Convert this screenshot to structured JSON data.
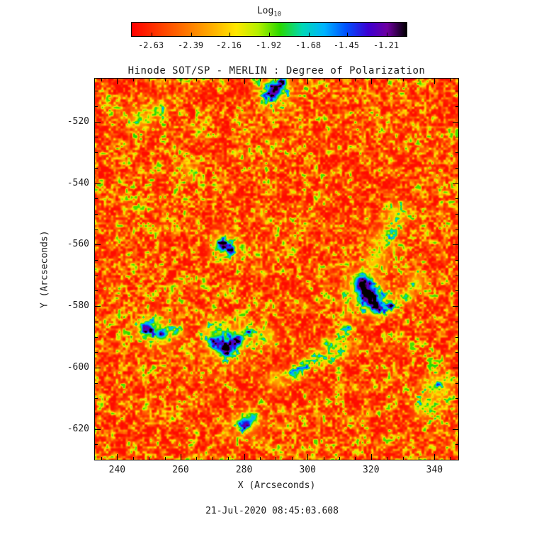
{
  "colorbar": {
    "title": "Log",
    "title_sub": "10",
    "tick_labels": [
      "-2.63",
      "-2.39",
      "-2.16",
      "-1.92",
      "-1.68",
      "-1.45",
      "-1.21"
    ]
  },
  "plot": {
    "title": "Hinode SOT/SP - MERLIN : Degree of Polarization",
    "xlabel": "X (Arcseconds)",
    "ylabel": "Y (Arcseconds)"
  },
  "caption": "21-Jul-2020 08:45:03.608",
  "chart_data": {
    "type": "heatmap",
    "title": "Hinode SOT/SP - MERLIN : Degree of Polarization",
    "xlabel": "X (Arcseconds)",
    "ylabel": "Y (Arcseconds)",
    "x_range": [
      233,
      347.5
    ],
    "y_range": [
      -630,
      -506
    ],
    "x_ticks": [
      240,
      260,
      280,
      300,
      320,
      340
    ],
    "y_ticks": [
      -520,
      -540,
      -560,
      -580,
      -600,
      -620
    ],
    "x_minor_step": 5,
    "y_minor_step": 5,
    "colorbar": {
      "scale_label": "Log10",
      "tick_values": [
        -2.63,
        -2.39,
        -2.16,
        -1.92,
        -1.68,
        -1.45,
        -1.21
      ],
      "value_range": [
        -2.75,
        -1.09
      ]
    },
    "value_description": "log10 degree of polarization: background granulation mostly -2.6 to -2.2 (red/orange) with speckles near -1.9 (green) and localized magnetic patches reaching -1.5 to -1.2 (blue/black)",
    "colormap_stops": [
      [
        0.0,
        "#ff0000"
      ],
      [
        0.1,
        "#ff3c00"
      ],
      [
        0.2,
        "#ff7700"
      ],
      [
        0.3,
        "#ffb300"
      ],
      [
        0.38,
        "#ffe800"
      ],
      [
        0.46,
        "#b4f000"
      ],
      [
        0.54,
        "#28d800"
      ],
      [
        0.62,
        "#00d8b4"
      ],
      [
        0.7,
        "#00b4ff"
      ],
      [
        0.78,
        "#0050ff"
      ],
      [
        0.86,
        "#3c00d2"
      ],
      [
        0.93,
        "#6e00a0"
      ],
      [
        1.0,
        "#000000"
      ]
    ],
    "noise_seed": 20200721,
    "features": [
      {
        "x": 289,
        "y": -510,
        "amp": 0.62,
        "sigma": 1.8
      },
      {
        "x": 292,
        "y": -507,
        "amp": 0.5,
        "sigma": 1.4
      },
      {
        "x": 290,
        "y": -510,
        "amp": 0.28,
        "sigma": 3.5
      },
      {
        "x": 273,
        "y": -560,
        "amp": 0.6,
        "sigma": 1.5
      },
      {
        "x": 276,
        "y": -561.5,
        "amp": 0.45,
        "sigma": 1.2
      },
      {
        "x": 274,
        "y": -560,
        "amp": 0.25,
        "sigma": 3.0
      },
      {
        "x": 317,
        "y": -572,
        "amp": 0.68,
        "sigma": 2.0
      },
      {
        "x": 319.5,
        "y": -577,
        "amp": 0.72,
        "sigma": 2.4
      },
      {
        "x": 322,
        "y": -581,
        "amp": 0.6,
        "sigma": 1.6
      },
      {
        "x": 326,
        "y": -580,
        "amp": 0.55,
        "sigma": 1.5
      },
      {
        "x": 331,
        "y": -577,
        "amp": 0.5,
        "sigma": 1.3
      },
      {
        "x": 318,
        "y": -575,
        "amp": 0.3,
        "sigma": 4.0
      },
      {
        "x": 312,
        "y": -587,
        "amp": 0.5,
        "sigma": 1.3
      },
      {
        "x": 306,
        "y": -592,
        "amp": 0.45,
        "sigma": 1.2
      },
      {
        "x": 249,
        "y": -587,
        "amp": 0.6,
        "sigma": 1.6
      },
      {
        "x": 254,
        "y": -589,
        "amp": 0.55,
        "sigma": 1.4
      },
      {
        "x": 259,
        "y": -588,
        "amp": 0.45,
        "sigma": 1.2
      },
      {
        "x": 252,
        "y": -588,
        "amp": 0.28,
        "sigma": 3.5
      },
      {
        "x": 270,
        "y": -592,
        "amp": 0.5,
        "sigma": 1.4
      },
      {
        "x": 274,
        "y": -594,
        "amp": 0.65,
        "sigma": 1.8
      },
      {
        "x": 278,
        "y": -591,
        "amp": 0.55,
        "sigma": 1.5
      },
      {
        "x": 281,
        "y": -588,
        "amp": 0.45,
        "sigma": 1.3
      },
      {
        "x": 275,
        "y": -592,
        "amp": 0.3,
        "sigma": 4.0
      },
      {
        "x": 296,
        "y": -602,
        "amp": 0.55,
        "sigma": 1.5
      },
      {
        "x": 299,
        "y": -599,
        "amp": 0.4,
        "sigma": 1.2
      },
      {
        "x": 280,
        "y": -618,
        "amp": 0.55,
        "sigma": 1.5
      },
      {
        "x": 283,
        "y": -616,
        "amp": 0.4,
        "sigma": 1.2
      },
      {
        "x": 281,
        "y": -618,
        "amp": 0.25,
        "sigma": 3.0
      },
      {
        "x": 328,
        "y": -550,
        "amp": 0.3,
        "sigma": 2.5
      },
      {
        "x": 324,
        "y": -558,
        "amp": 0.28,
        "sigma": 2.5
      },
      {
        "x": 321,
        "y": -565,
        "amp": 0.3,
        "sigma": 2.2
      },
      {
        "x": 334,
        "y": -572,
        "amp": 0.3,
        "sigma": 2.0
      },
      {
        "x": 310,
        "y": -594,
        "amp": 0.3,
        "sigma": 2.5
      },
      {
        "x": 303,
        "y": -597,
        "amp": 0.28,
        "sigma": 2.0
      },
      {
        "x": 341,
        "y": -606,
        "amp": 0.32,
        "sigma": 3.0
      },
      {
        "x": 337,
        "y": -613,
        "amp": 0.3,
        "sigma": 2.5
      },
      {
        "x": 247,
        "y": -519,
        "amp": 0.28,
        "sigma": 2.5
      },
      {
        "x": 253,
        "y": -516,
        "amp": 0.25,
        "sigma": 2.0
      },
      {
        "x": 263,
        "y": -536,
        "amp": 0.25,
        "sigma": 1.8
      },
      {
        "x": 290,
        "y": -604,
        "amp": 0.25,
        "sigma": 2.0
      },
      {
        "x": 271,
        "y": -588,
        "amp": 0.3,
        "sigma": 2.5
      },
      {
        "x": 287,
        "y": -590,
        "amp": 0.28,
        "sigma": 2.2
      }
    ]
  }
}
